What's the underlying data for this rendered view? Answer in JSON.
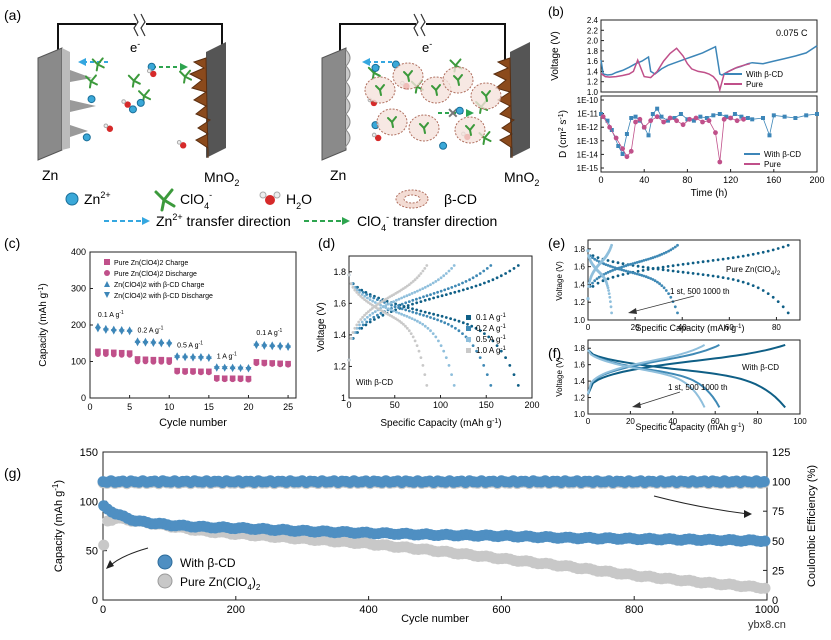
{
  "panel_letters": {
    "a": "(a)",
    "b": "(b)",
    "c": "(c)",
    "d": "(d)",
    "e": "(e)",
    "f": "(f)",
    "g": "(g)"
  },
  "schematic": {
    "left_anode": "Zn",
    "left_cathode": "MnO",
    "right_anode": "Zn",
    "right_cathode": "MnO",
    "sub2": "2",
    "electron": "e",
    "electron_sup": "-",
    "legend": {
      "zn": "Zn",
      "zn_sup": "2+",
      "clo4": "ClO",
      "clo4_sub": "4",
      "clo4_sup": "-",
      "h2o": "H",
      "h2o_sub": "2",
      "h2o_end": "O",
      "bcd": "β-CD",
      "zn_transfer": "Zn",
      "zn_transfer_sup": "2+",
      "zn_transfer_end": " transfer direction",
      "clo4_transfer": "ClO",
      "clo4_transfer_sub": "4",
      "clo4_transfer_sup": "-",
      "clo4_transfer_end": " transfer direction"
    }
  },
  "colors": {
    "blue": "#3d86b8",
    "pink": "#c0508a",
    "teal": "#0f5f86",
    "grey": "#b9b9b9",
    "light_blue": "#9fcbe6"
  },
  "watermark": "ybx8.cn",
  "chart_data": [
    {
      "id": "b",
      "type": "line",
      "note": "0.075 C",
      "xlabel": "Time (h)",
      "xlim": [
        0,
        200
      ],
      "xticks": [
        "0",
        "40",
        "80",
        "120",
        "160",
        "200"
      ],
      "top": {
        "ylabel": "Voltage (V)",
        "ylim": [
          1.0,
          2.4
        ],
        "yticks": [
          "1.0",
          "1.2",
          "1.4",
          "1.6",
          "1.8",
          "2.0",
          "2.2",
          "2.4"
        ]
      },
      "bottom": {
        "ylabel": "D (cm",
        "ylabel_sup": "2",
        "ylabel_end": " s",
        "ylabel_sup2": "-1",
        "ylabel_close": ")",
        "yticks": [
          "1E-10",
          "1E-11",
          "1E-12",
          "1E-13",
          "1E-14",
          "1E-15"
        ]
      },
      "legend": [
        "With β-CD",
        "Pure"
      ],
      "series": [
        {
          "name": "With β-CD",
          "voltage_x": [
            0,
            2,
            6,
            10,
            14,
            20,
            26,
            32,
            38,
            44,
            46,
            50,
            56,
            62,
            70,
            78,
            86,
            94,
            100,
            106,
            110,
            112,
            118,
            124,
            130,
            136,
            140,
            150,
            160,
            170,
            180,
            190,
            200
          ],
          "voltage_y": [
            1.62,
            1.35,
            1.33,
            1.34,
            1.38,
            1.42,
            1.48,
            1.55,
            1.6,
            1.68,
            1.4,
            1.35,
            1.45,
            1.52,
            1.58,
            1.64,
            1.7,
            1.76,
            1.82,
            1.88,
            1.35,
            1.33,
            1.4,
            1.46,
            1.5,
            1.55,
            1.57,
            1.55,
            1.6,
            1.65,
            1.7,
            1.76,
            1.9
          ],
          "d_x": [
            0,
            6,
            10,
            16,
            20,
            24,
            28,
            32,
            36,
            40,
            44,
            48,
            52,
            56,
            62,
            68,
            74,
            80,
            86,
            92,
            98,
            104,
            110,
            116,
            120,
            124,
            130,
            136,
            140,
            150,
            156,
            160,
            170,
            180,
            190,
            200
          ],
          "d_log": [
            -11,
            -11.5,
            -12.2,
            -13.4,
            -14,
            -12.5,
            -11.3,
            -11.2,
            -11.5,
            -12,
            -12.6,
            -11,
            -10.6,
            -11.2,
            -11.5,
            -11.3,
            -11,
            -11.4,
            -11.5,
            -11.2,
            -11.3,
            -11.1,
            -11,
            -11.2,
            -11.3,
            -11,
            -11.2,
            -11.3,
            -11.4,
            -11.3,
            -12.6,
            -11.1,
            -11.2,
            -11.3,
            -11.1,
            -11
          ]
        },
        {
          "name": "Pure",
          "voltage_x": [
            0,
            4,
            8,
            14,
            20,
            26,
            30,
            34,
            40,
            46,
            52,
            58,
            64,
            70,
            76,
            80,
            84,
            90,
            96,
            100,
            104,
            108,
            110,
            114,
            120,
            126,
            132,
            138
          ],
          "voltage_y": [
            1.36,
            1.3,
            1.29,
            1.3,
            1.32,
            1.35,
            1.4,
            1.62,
            1.3,
            1.28,
            1.4,
            1.6,
            1.75,
            1.85,
            1.7,
            1.55,
            1.45,
            1.4,
            1.38,
            1.35,
            1.3,
            1.2,
            1.04,
            1.35,
            1.42,
            1.48,
            1.52,
            1.55
          ],
          "d_x": [
            2,
            8,
            14,
            20,
            24,
            28,
            32,
            36,
            40,
            46,
            52,
            58,
            64,
            70,
            76,
            82,
            88,
            94,
            100,
            106,
            110,
            114,
            120,
            126,
            132
          ],
          "d_log": [
            -11.2,
            -12,
            -12.8,
            -13.6,
            -14.2,
            -13.8,
            -11.6,
            -11.4,
            -12,
            -11.5,
            -11.2,
            -11.6,
            -11.3,
            -11.5,
            -11.8,
            -11.4,
            -11.3,
            -11.6,
            -11.5,
            -12.4,
            -14.6,
            -11.4,
            -11.3,
            -11.5,
            -11.4
          ]
        }
      ]
    },
    {
      "id": "c",
      "type": "scatter",
      "xlabel": "Cycle number",
      "ylabel": "Capacity (mAh g",
      "ylabel_sup": "-1",
      "ylabel_close": ")",
      "xlim": [
        0,
        26
      ],
      "ylim": [
        0,
        400
      ],
      "xticks": [
        "0",
        "5",
        "10",
        "15",
        "20",
        "25"
      ],
      "yticks": [
        "0",
        "100",
        "200",
        "300",
        "400"
      ],
      "legend": [
        "Pure Zn(ClO",
        "Pure Zn(ClO",
        "Zn(ClO",
        "Zn(ClO"
      ],
      "legend_end": [
        ")",
        "2",
        "Charge",
        "Discharge"
      ],
      "legend_full": [
        "Pure Zn(ClO4)2 Charge",
        "Pure Zn(ClO4)2 Discharge",
        "Zn(ClO4)2 with β-CD Charge",
        "Zn(ClO4)2 with β-CD Discharge"
      ],
      "rate_labels": [
        {
          "text": "0.1 A g",
          "sup": "-1",
          "cycle": 1,
          "cap": 222
        },
        {
          "text": "0.2 A g",
          "sup": "-1",
          "cycle": 6,
          "cap": 180
        },
        {
          "text": "0.5 A g",
          "sup": "-1",
          "cycle": 11,
          "cap": 138
        },
        {
          "text": "1 A g",
          "sup": "-1",
          "cycle": 16,
          "cap": 108
        },
        {
          "text": "0.1 A g",
          "sup": "-1",
          "cycle": 21,
          "cap": 172
        }
      ],
      "x": [
        1,
        2,
        3,
        4,
        5,
        6,
        7,
        8,
        9,
        10,
        11,
        12,
        13,
        14,
        15,
        16,
        17,
        18,
        19,
        20,
        21,
        22,
        23,
        24,
        25
      ],
      "series": [
        {
          "name": "Pure Zn(ClO4)2 Charge",
          "values": [
            128,
            126,
            125,
            124,
            123,
            107,
            106,
            105,
            105,
            104,
            75,
            74,
            74,
            73,
            73,
            55,
            54,
            54,
            54,
            53,
            99,
            97,
            96,
            95,
            94
          ]
        },
        {
          "name": "Pure Zn(ClO4)2 Discharge",
          "values": [
            120,
            120,
            119,
            118,
            118,
            100,
            100,
            99,
            99,
            98,
            72,
            71,
            71,
            70,
            70,
            52,
            51,
            51,
            51,
            50,
            95,
            94,
            93,
            92,
            91
          ]
        },
        {
          "name": "Zn(ClO4)2 with β-CD Charge",
          "values": [
            198,
            192,
            190,
            189,
            188,
            158,
            157,
            156,
            155,
            154,
            117,
            116,
            115,
            115,
            114,
            87,
            86,
            86,
            85,
            85,
            150,
            148,
            147,
            146,
            145
          ]
        },
        {
          "name": "Zn(ClO4)2 with β-CD Discharge",
          "values": [
            188,
            184,
            182,
            181,
            180,
            150,
            149,
            148,
            147,
            146,
            110,
            109,
            108,
            108,
            107,
            80,
            80,
            79,
            79,
            78,
            142,
            140,
            139,
            138,
            137
          ]
        }
      ]
    },
    {
      "id": "d",
      "type": "line",
      "xlabel": "Specific Capacity (mAh g",
      "xlabel_sup": "-1",
      "xlabel_close": ")",
      "ylabel": "Voltage (V)",
      "xlim": [
        0,
        200
      ],
      "ylim": [
        1.0,
        1.9
      ],
      "xticks": [
        "0",
        "50",
        "100",
        "150",
        "200"
      ],
      "yticks": [
        "1",
        "1.2",
        "1.4",
        "1.6",
        "1.8"
      ],
      "note": "With β-CD",
      "legend": [
        "0.1 A g",
        "0.2 A g",
        "0.5 A g",
        "1.0 A g"
      ],
      "legend_sup": "-1",
      "series": [
        {
          "name": "0.1 A g-1",
          "max": 185
        },
        {
          "name": "0.2 A g-1",
          "max": 155
        },
        {
          "name": "0.5 A g-1",
          "max": 115
        },
        {
          "name": "1.0 A g-1",
          "max": 85
        }
      ]
    },
    {
      "id": "e",
      "type": "line",
      "xlabel": "Specific Capacity (mAh g",
      "xlabel_sup": "-1",
      "xlabel_close": ")",
      "ylabel": "Voltage (V)",
      "xlim": [
        0,
        90
      ],
      "ylim": [
        1.0,
        1.9
      ],
      "xticks": [
        "0",
        "20",
        "40",
        "60",
        "80"
      ],
      "yticks": [
        "1.0",
        "1.2",
        "1.4",
        "1.6",
        "1.8"
      ],
      "note": "Pure Zn(ClO",
      "note_sub": "4",
      "note_close": ")",
      "note_sub2": "2",
      "annotation": "1 st, 500 1000 th",
      "series": [
        {
          "name": "1st",
          "max": 85
        },
        {
          "name": "500th",
          "max": 38
        },
        {
          "name": "1000th",
          "max": 10
        }
      ]
    },
    {
      "id": "f",
      "type": "line",
      "xlabel": "Specific Capacity (mAh g",
      "xlabel_sup": "-1",
      "xlabel_close": ")",
      "ylabel": "Voltage (V)",
      "xlim": [
        0,
        100
      ],
      "ylim": [
        1.0,
        1.9
      ],
      "xticks": [
        "0",
        "20",
        "40",
        "60",
        "80",
        "100"
      ],
      "yticks": [
        "1.0",
        "1.2",
        "1.4",
        "1.6",
        "1.8"
      ],
      "note": "With β-CD",
      "annotation": "1 st, 500 1000 th",
      "series": [
        {
          "name": "1st",
          "max": 93
        },
        {
          "name": "500th",
          "max": 62
        },
        {
          "name": "1000th",
          "max": 55
        }
      ]
    },
    {
      "id": "g",
      "type": "scatter",
      "xlabel": "Cycle number",
      "ylabel": "Capacity (mAh g",
      "ylabel_sup": "-1",
      "ylabel_close": ")",
      "y2label": "Coulombic Efficiency (%)",
      "xlim": [
        0,
        1000
      ],
      "ylim": [
        0,
        150
      ],
      "y2lim": [
        0,
        125
      ],
      "xticks": [
        "0",
        "200",
        "400",
        "600",
        "800",
        "1000"
      ],
      "yticks": [
        "0",
        "50",
        "100",
        "150"
      ],
      "y2ticks": [
        "0",
        "25",
        "50",
        "75",
        "100",
        "125"
      ],
      "legend": [
        "With β-CD",
        "Pure Zn(ClO",
        "Pure Zn(ClO"
      ],
      "legend_labels": [
        "With β-CD",
        "Pure Zn(ClO4)2"
      ],
      "legend_sub": "4",
      "legend_close": ")",
      "legend_sub2": "2",
      "series": [
        {
          "name": "With β-CD capacity",
          "x": [
            1,
            20,
            50,
            100,
            150,
            200,
            300,
            400,
            500,
            600,
            700,
            800,
            900,
            1000
          ],
          "values": [
            95,
            87,
            80,
            76,
            74,
            73,
            70,
            68,
            66,
            65,
            63,
            62,
            61,
            60
          ]
        },
        {
          "name": "Pure Zn(ClO4)2 capacity",
          "x": [
            1,
            5,
            20,
            50,
            100,
            150,
            200,
            300,
            400,
            500,
            600,
            700,
            800,
            900,
            1000
          ],
          "values": [
            55,
            80,
            83,
            80,
            75,
            70,
            67,
            62,
            57,
            50,
            42,
            34,
            25,
            18,
            12
          ]
        },
        {
          "name": "With β-CD CE",
          "x": [
            0,
            1000
          ],
          "values": [
            100,
            100
          ]
        },
        {
          "name": "Pure Zn(ClO4)2 CE",
          "x": [
            0,
            1000
          ],
          "values": [
            99,
            99
          ]
        }
      ]
    }
  ]
}
